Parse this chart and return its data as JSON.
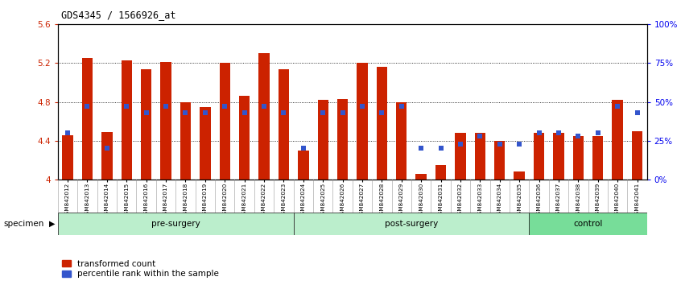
{
  "title": "GDS4345 / 1566926_at",
  "samples": [
    "GSM842012",
    "GSM842013",
    "GSM842014",
    "GSM842015",
    "GSM842016",
    "GSM842017",
    "GSM842018",
    "GSM842019",
    "GSM842020",
    "GSM842021",
    "GSM842022",
    "GSM842023",
    "GSM842024",
    "GSM842025",
    "GSM842026",
    "GSM842027",
    "GSM842028",
    "GSM842029",
    "GSM842030",
    "GSM842031",
    "GSM842032",
    "GSM842033",
    "GSM842034",
    "GSM842035",
    "GSM842036",
    "GSM842037",
    "GSM842038",
    "GSM842039",
    "GSM842040",
    "GSM842041"
  ],
  "red_values": [
    4.46,
    5.25,
    4.49,
    5.23,
    5.14,
    5.21,
    4.8,
    4.75,
    5.2,
    4.86,
    5.3,
    5.14,
    4.3,
    4.82,
    4.83,
    5.2,
    5.16,
    4.8,
    4.06,
    4.15,
    4.48,
    4.48,
    4.4,
    4.08,
    4.48,
    4.48,
    4.45,
    4.45,
    4.82,
    4.5
  ],
  "blue_values_pct": [
    30,
    47,
    20,
    47,
    43,
    47,
    43,
    43,
    47,
    43,
    47,
    43,
    20,
    43,
    43,
    47,
    43,
    47,
    20,
    20,
    23,
    28,
    23,
    23,
    30,
    30,
    28,
    30,
    47,
    43
  ],
  "ylim_left": [
    4.0,
    5.6
  ],
  "ylim_right": [
    0,
    100
  ],
  "yticks_left": [
    4.0,
    4.4,
    4.8,
    5.2,
    5.6
  ],
  "ytick_labels_left": [
    "4",
    "4.4",
    "4.8",
    "5.2",
    "5.6"
  ],
  "yticks_right": [
    0,
    25,
    50,
    75,
    100
  ],
  "ytick_labels_right": [
    "0%",
    "25%",
    "50%",
    "75%",
    "100%"
  ],
  "bar_color": "#CC2200",
  "blue_color": "#3355CC",
  "bg_color": "#FFFFFF",
  "grid_color": "#000000",
  "xlabel_color": "#CC2200",
  "ylabel_right_color": "#0000EE",
  "legend_red": "transformed count",
  "legend_blue": "percentile rank within the sample",
  "bar_width": 0.55,
  "groups": [
    {
      "label": "pre-surgery",
      "start": 0,
      "end": 11,
      "light": true
    },
    {
      "label": "post-surgery",
      "start": 12,
      "end": 23,
      "light": true
    },
    {
      "label": "control",
      "start": 24,
      "end": 29,
      "light": false
    }
  ],
  "group_light_color": "#BBEECC",
  "group_dark_color": "#77DD99",
  "group_border_color": "#333333"
}
